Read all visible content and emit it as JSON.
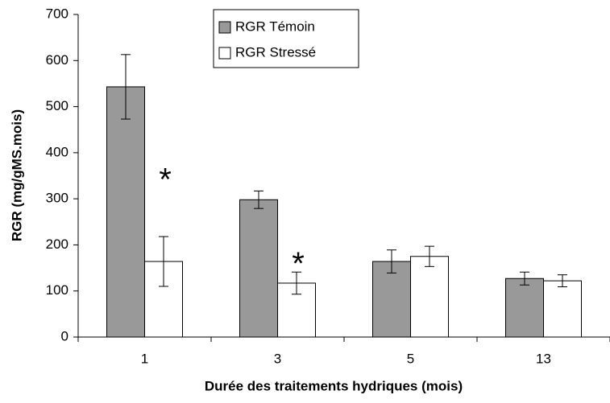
{
  "chart_data": {
    "type": "bar",
    "x_label": "Durée des traitements hydriques (mois)",
    "y_label": "RGR (mg/gMS.mois)",
    "categories": [
      "1",
      "3",
      "5",
      "13"
    ],
    "series": [
      {
        "name": "RGR Témoin",
        "color": "#999999",
        "values": [
          543,
          298,
          164,
          127
        ],
        "errors": [
          70,
          19,
          25,
          14
        ]
      },
      {
        "name": "RGR Stressé",
        "color": "#ffffff",
        "values": [
          164,
          117,
          175,
          122
        ],
        "errors": [
          54,
          24,
          22,
          13
        ],
        "markers": [
          "*",
          "*",
          null,
          null
        ]
      }
    ],
    "ylim": [
      0,
      700
    ],
    "yticks": [
      0,
      100,
      200,
      300,
      400,
      500,
      600,
      700
    ],
    "grid": false
  }
}
